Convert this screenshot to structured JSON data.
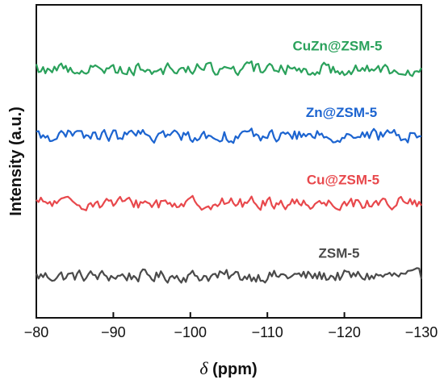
{
  "chart_data": {
    "type": "line",
    "xlabel_symbol": "δ",
    "xlabel_unit": " (ppm)",
    "ylabel": "Intensity (a.u.)",
    "xlim": [
      -80,
      -130
    ],
    "x_reversed": true,
    "y_ticks": false,
    "grid": false,
    "legend": "none (series names labelled above each trace)",
    "x_ticks": [
      -80,
      -90,
      -100,
      -110,
      -120,
      -130
    ],
    "x_tick_labels": [
      "−80",
      "−90",
      "−100",
      "−110",
      "−120",
      "−130"
    ],
    "ylim": [
      0,
      4.5
    ],
    "series": [
      {
        "name": "ZSM-5",
        "color": "#4a4a4a",
        "baseline": 0.6
      },
      {
        "name": "Cu@ZSM-5",
        "color": "#e8484c",
        "baseline": 1.65
      },
      {
        "name": "Zn@ZSM-5",
        "color": "#1c64d0",
        "baseline": 2.62
      },
      {
        "name": "CuZn@ZSM-5",
        "color": "#2aa15b",
        "baseline": 3.58
      }
    ],
    "note": "Flat noisy traces; no distinct peaks in -80 to -130 ppm range."
  }
}
